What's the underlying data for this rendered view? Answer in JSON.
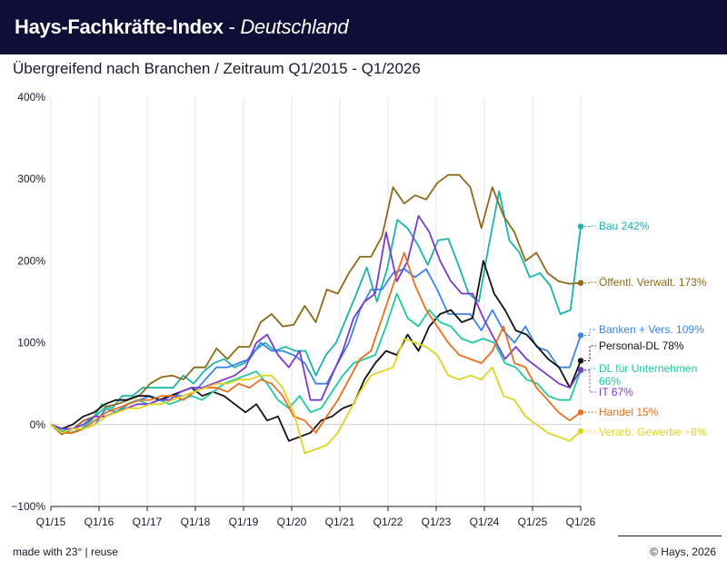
{
  "header": {
    "title_bold": "Hays-Fachkräfte-Index",
    "title_separator": " - ",
    "title_italic": "Deutschland"
  },
  "subtitle": "Übergreifend nach Branchen / Zeitraum Q1/2015 -  Q1/2026",
  "footer": {
    "left": "made with 23° | reuse",
    "right": "© Hays, 2026"
  },
  "chart_data": {
    "type": "line",
    "x_ticks": [
      "Q1/15",
      "Q1/16",
      "Q1/17",
      "Q1/18",
      "Q1/19",
      "Q1/20",
      "Q1/21",
      "Q1/22",
      "Q1/23",
      "Q1/24",
      "Q1/25",
      "Q1/26"
    ],
    "y_ticks": [
      "400%",
      "300%",
      "200%",
      "100%",
      "0%",
      "−100%"
    ],
    "ylim": [
      -100,
      400
    ],
    "x_start": "Q1/2015",
    "x_end": "Q1/2026",
    "grid": "vertical",
    "series": [
      {
        "name": "Bau",
        "end_label": "Bau 242%",
        "color": "#19b5a8",
        "values": [
          0,
          -10,
          -10,
          -5,
          5,
          25,
          20,
          35,
          35,
          45,
          45,
          45,
          45,
          60,
          50,
          65,
          75,
          80,
          70,
          75,
          90,
          100,
          90,
          95,
          90,
          90,
          60,
          85,
          100,
          130,
          160,
          192,
          150,
          190,
          250,
          240,
          220,
          195,
          225,
          227,
          195,
          160,
          150,
          220,
          285,
          225,
          210,
          180,
          185,
          170,
          135,
          140,
          242
        ]
      },
      {
        "name": "Öffentl. Verwalt.",
        "end_label": "Öffentl. Verwalt. 173%",
        "color": "#8c6a18",
        "values": [
          0,
          -12,
          -5,
          5,
          10,
          22,
          25,
          30,
          35,
          50,
          58,
          60,
          55,
          70,
          70,
          93,
          80,
          95,
          95,
          125,
          135,
          120,
          122,
          145,
          125,
          165,
          160,
          185,
          205,
          205,
          230,
          290,
          270,
          280,
          275,
          295,
          305,
          305,
          290,
          240,
          290,
          255,
          235,
          200,
          210,
          185,
          175,
          172,
          173
        ]
      },
      {
        "name": "Banken + Vers.",
        "end_label": "Banken + Vers. 109%",
        "color": "#3a85e8",
        "values": [
          0,
          -10,
          -10,
          -5,
          0,
          20,
          15,
          25,
          30,
          35,
          30,
          35,
          35,
          40,
          55,
          70,
          70,
          75,
          80,
          100,
          90,
          90,
          85,
          75,
          50,
          50,
          75,
          100,
          140,
          165,
          165,
          185,
          190,
          180,
          190,
          165,
          135,
          135,
          135,
          115,
          140,
          115,
          100,
          120,
          95,
          90,
          70,
          70,
          109
        ]
      },
      {
        "name": "Personal-DL",
        "end_label": "Personal-DL 78%",
        "color": "#111111",
        "values": [
          0,
          -5,
          0,
          10,
          15,
          25,
          30,
          30,
          35,
          35,
          30,
          35,
          40,
          45,
          35,
          40,
          35,
          25,
          15,
          25,
          5,
          10,
          -20,
          -15,
          -10,
          5,
          10,
          20,
          25,
          55,
          75,
          90,
          85,
          110,
          90,
          120,
          135,
          140,
          125,
          130,
          200,
          160,
          140,
          115,
          110,
          95,
          80,
          70,
          45,
          78
        ]
      },
      {
        "name": "DL für Unternehmen",
        "end_label": "DL für Unternehmen",
        "end_label2": "66%",
        "color": "#1ec9a0",
        "values": [
          0,
          -8,
          -5,
          0,
          10,
          20,
          15,
          25,
          30,
          25,
          30,
          25,
          30,
          35,
          30,
          40,
          50,
          55,
          60,
          65,
          50,
          30,
          20,
          35,
          15,
          20,
          40,
          60,
          75,
          80,
          85,
          120,
          160,
          130,
          120,
          140,
          125,
          120,
          105,
          100,
          105,
          100,
          75,
          70,
          55,
          50,
          35,
          30,
          30,
          66
        ]
      },
      {
        "name": "IT",
        "end_label": "IT 67%",
        "color": "#7a3ad0",
        "values": [
          0,
          -5,
          -5,
          0,
          10,
          10,
          15,
          20,
          25,
          25,
          30,
          30,
          40,
          45,
          45,
          50,
          55,
          60,
          70,
          100,
          110,
          85,
          70,
          90,
          30,
          30,
          60,
          90,
          130,
          150,
          160,
          235,
          175,
          200,
          255,
          235,
          200,
          175,
          160,
          160,
          130,
          105,
          80,
          95,
          80,
          70,
          60,
          50,
          45,
          67
        ]
      },
      {
        "name": "Handel",
        "end_label": "Handel 15%",
        "color": "#ea6f1c",
        "values": [
          0,
          -10,
          -10,
          -5,
          5,
          15,
          20,
          25,
          30,
          30,
          35,
          35,
          30,
          40,
          45,
          45,
          40,
          50,
          45,
          55,
          50,
          35,
          10,
          5,
          -10,
          10,
          30,
          55,
          80,
          90,
          130,
          170,
          210,
          170,
          140,
          120,
          100,
          85,
          80,
          75,
          90,
          120,
          75,
          70,
          45,
          30,
          15,
          5,
          15
        ]
      },
      {
        "name": "Verarb. Gewerbe",
        "end_label": "Verarb. Gewerbe −8%",
        "color": "#e2d320",
        "values": [
          0,
          -10,
          -5,
          -5,
          0,
          10,
          15,
          20,
          20,
          25,
          25,
          30,
          35,
          40,
          45,
          50,
          50,
          55,
          55,
          60,
          60,
          45,
          15,
          -35,
          -30,
          -25,
          -10,
          15,
          40,
          60,
          65,
          70,
          105,
          100,
          95,
          85,
          60,
          55,
          60,
          55,
          70,
          35,
          30,
          10,
          0,
          -10,
          -15,
          -20,
          -8
        ]
      }
    ]
  }
}
